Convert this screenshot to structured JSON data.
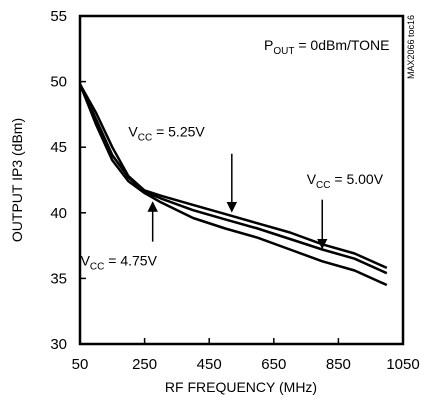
{
  "chart_data": {
    "type": "line",
    "xlabel": "RF FREQUENCY (MHz)",
    "ylabel": "OUTPUT IP3 (dBm)",
    "xlim": [
      50,
      1050
    ],
    "ylim": [
      30,
      55
    ],
    "xticks": [
      50,
      250,
      450,
      650,
      850,
      1050
    ],
    "yticks": [
      30,
      35,
      40,
      45,
      50,
      55
    ],
    "grid": false,
    "side_label": "MAX2066 toc16",
    "condition": {
      "prefix": "P",
      "sub": "OUT",
      "suffix": " = 0dBm/TONE"
    },
    "series": [
      {
        "name": {
          "prefix": "V",
          "sub": "CC",
          "suffix": " = 5.25V"
        },
        "x": [
          50,
          100,
          150,
          200,
          250,
          300,
          400,
          500,
          600,
          700,
          800,
          900,
          1000
        ],
        "y": [
          49.8,
          47.6,
          45.0,
          42.8,
          41.7,
          41.3,
          40.6,
          39.9,
          39.2,
          38.5,
          37.6,
          36.9,
          35.8
        ]
      },
      {
        "name": {
          "prefix": "V",
          "sub": "CC",
          "suffix": " = 5.00V"
        },
        "x": [
          50,
          100,
          150,
          200,
          250,
          300,
          400,
          500,
          600,
          700,
          800,
          900,
          1000
        ],
        "y": [
          49.8,
          47.1,
          44.4,
          42.7,
          41.6,
          41.1,
          40.2,
          39.5,
          38.8,
          38.0,
          37.2,
          36.5,
          35.4
        ]
      },
      {
        "name": {
          "prefix": "V",
          "sub": "CC",
          "suffix": " = 4.75V"
        },
        "x": [
          50,
          100,
          150,
          200,
          250,
          300,
          400,
          500,
          600,
          700,
          800,
          900,
          1000
        ],
        "y": [
          49.8,
          46.7,
          44.0,
          42.4,
          41.5,
          40.8,
          39.6,
          38.8,
          38.1,
          37.2,
          36.3,
          35.6,
          34.5
        ]
      }
    ],
    "annotations": [
      {
        "series": 0,
        "text_at": [
          318,
          45.8
        ],
        "arrow_from": [
          520,
          44.5
        ],
        "arrow_to": [
          520,
          40.1
        ]
      },
      {
        "series": 1,
        "text_at": [
          870,
          42.2
        ],
        "arrow_from": [
          800,
          41.0
        ],
        "arrow_to": [
          800,
          37.3
        ]
      },
      {
        "series": 2,
        "text_at": [
          170,
          36.0
        ],
        "arrow_from": [
          275,
          37.8
        ],
        "arrow_to": [
          275,
          40.8
        ]
      }
    ]
  }
}
